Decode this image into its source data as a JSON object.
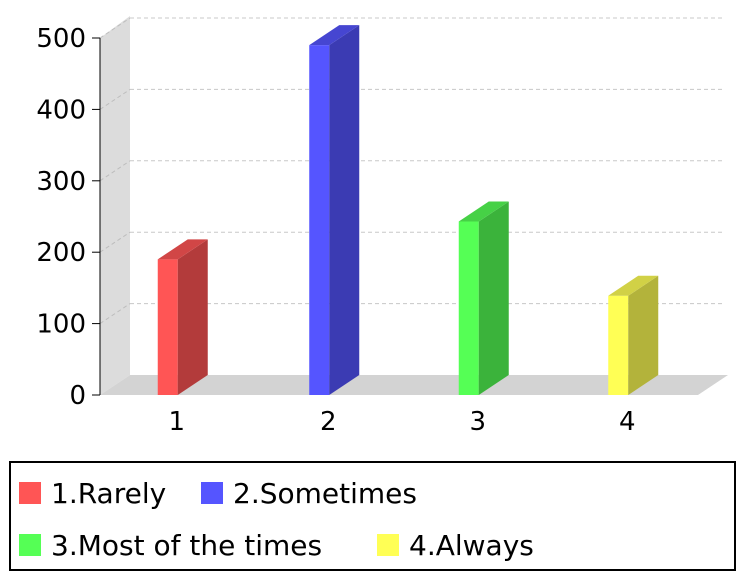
{
  "chart_data": {
    "type": "bar",
    "categories": [
      "1",
      "2",
      "3",
      "4"
    ],
    "values": [
      190,
      490,
      243,
      139
    ],
    "colors": [
      "#ff5555",
      "#5555ff",
      "#55ff55",
      "#ffff55"
    ],
    "yticks": [
      "0",
      "100",
      "200",
      "300",
      "400",
      "500"
    ],
    "ylim": [
      0,
      500
    ],
    "grid": true,
    "three_d": true,
    "legend": {
      "placement": "bottom",
      "entries": [
        "1.Rarely",
        "2.Sometimes",
        "3.Most of the times",
        "4.Always"
      ]
    }
  }
}
